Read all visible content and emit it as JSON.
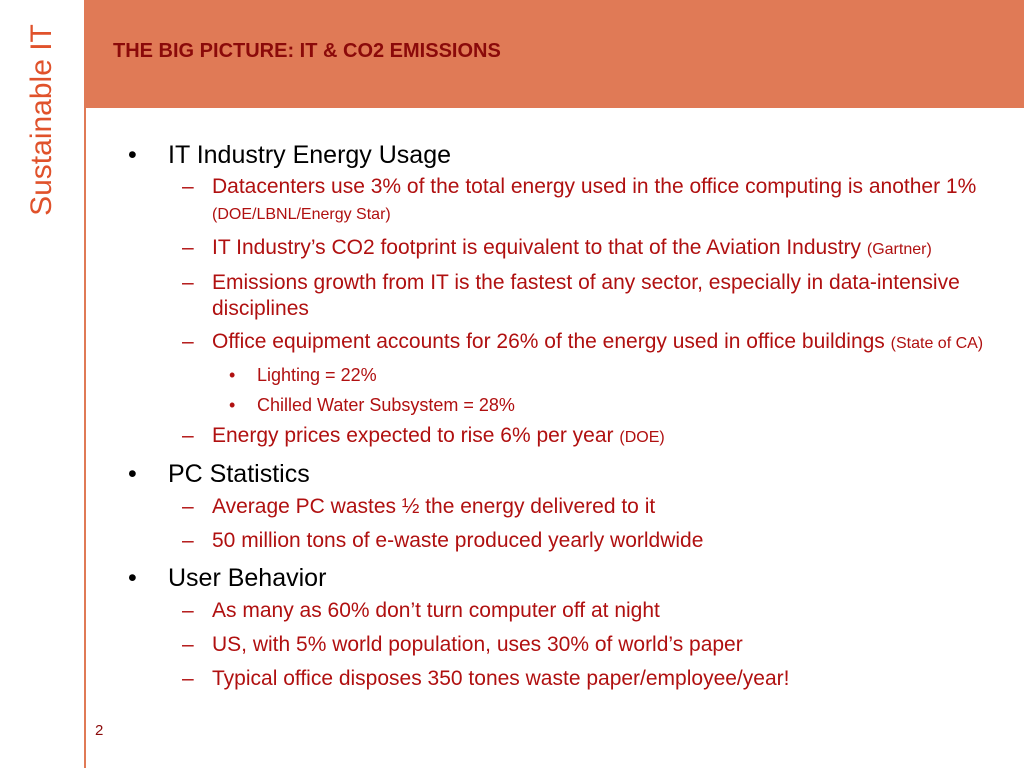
{
  "sidebar": {
    "label": "Sustainable IT"
  },
  "header": {
    "title": "THE BIG PICTURE: IT & CO2 EMISSIONS"
  },
  "footer": {
    "slide_number": "2"
  },
  "markers": {
    "bullet": "•",
    "dash": "–",
    "sub_bullet": "•"
  },
  "sections": [
    {
      "heading": "IT Industry Energy Usage",
      "items": [
        {
          "text": "Datacenters use 3% of the total energy used in the office computing is another 1% ",
          "source": "(DOE/LBNL/Energy Star)"
        },
        {
          "text": "IT Industry’s CO2 footprint is equivalent to that of the Aviation Industry ",
          "source": "(Gartner)"
        },
        {
          "text": "Emissions growth from IT is the fastest of any sector, especially in data-intensive disciplines"
        },
        {
          "text": "Office equipment accounts for 26% of the energy used in office buildings ",
          "source": "(State of CA)"
        },
        {
          "text": "Lighting = 22%"
        },
        {
          "text": "Chilled Water Subsystem = 28%"
        },
        {
          "text": "Energy prices expected to rise 6% per year ",
          "source": "(DOE)"
        }
      ]
    },
    {
      "heading": "PC Statistics",
      "items": [
        {
          "text": "Average PC wastes ½ the energy delivered to it"
        },
        {
          "text": "50 million tons of e-waste produced yearly worldwide"
        }
      ]
    },
    {
      "heading": "User Behavior",
      "items": [
        {
          "text": "As many as 60% don’t turn computer off at night"
        },
        {
          "text": "US, with 5% world population, uses 30% of world’s paper"
        },
        {
          "text": "Typical office disposes 350 tones waste paper/employee/year!"
        }
      ]
    }
  ],
  "colors": {
    "header_band": "#e07a56",
    "sidebar_text": "#e0522b",
    "title_text": "#8b0a0a",
    "sub_text": "#b01010"
  }
}
